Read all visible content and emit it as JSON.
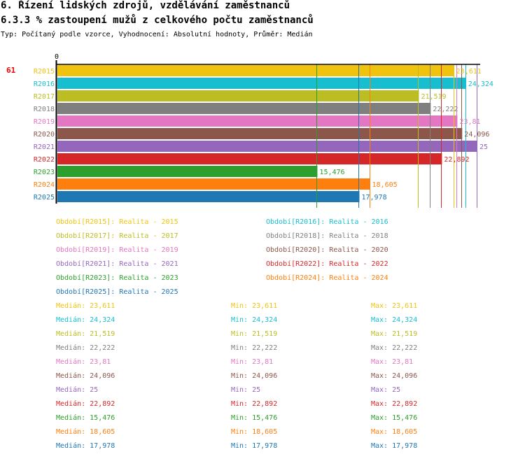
{
  "header": {
    "title": "6. Řízení lidských zdrojů, vzdělávání zaměstnanců",
    "subtitle": "6.3.3 % zastoupení mužů z celkového počtu zaměstnanců",
    "meta": "Typ: Počítaný podle vzorce, Vyhodnocení: Absolutní hodnoty, Průměr: Medián"
  },
  "rank_label": "61",
  "chart_data": {
    "type": "bar",
    "orientation": "horizontal",
    "title": "6.3.3 % zastoupení mužů z celkového počtu zaměstnanců",
    "xlabel": "",
    "ylabel": "",
    "x_tick_labels": [
      "0"
    ],
    "xlim": [
      0,
      25.2
    ],
    "grid": false,
    "categories": [
      "R2015",
      "R2016",
      "R2017",
      "R2018",
      "R2019",
      "R2020",
      "R2021",
      "R2022",
      "R2023",
      "R2024",
      "R2025"
    ],
    "values": [
      23.611,
      24.324,
      21.519,
      22.222,
      23.81,
      24.096,
      25,
      22.892,
      15.476,
      18.605,
      17.978
    ],
    "value_labels": [
      "23,611",
      "24,324",
      "21,519",
      "22,222",
      "23,81",
      "24,096",
      "25",
      "22,892",
      "15,476",
      "18,605",
      "17,978"
    ],
    "colors": [
      "#f0c30f",
      "#17becf",
      "#bcbd22",
      "#7f7f7f",
      "#e377c2",
      "#8c564b",
      "#9467bd",
      "#d62728",
      "#2ca02c",
      "#ff7f0e",
      "#1f77b4"
    ],
    "median_lines": [
      23.611,
      24.324,
      21.519,
      22.222,
      23.81,
      24.096,
      25,
      22.892,
      15.476,
      18.605,
      17.978
    ],
    "legend": [
      "Období[R2015]: Realita - 2015",
      "Období[R2016]: Realita - 2016",
      "Období[R2017]: Realita - 2017",
      "Období[R2018]: Realita - 2018",
      "Období[R2019]: Realita - 2019",
      "Období[R2020]: Realita - 2020",
      "Období[R2021]: Realita - 2021",
      "Období[R2022]: Realita - 2022",
      "Období[R2023]: Realita - 2023",
      "Období[R2024]: Realita - 2024",
      "Období[R2025]: Realita - 2025"
    ],
    "stats": [
      {
        "median": "Medián: 23,611",
        "min": "Min: 23,611",
        "max": "Max: 23,611"
      },
      {
        "median": "Medián: 24,324",
        "min": "Min: 24,324",
        "max": "Max: 24,324"
      },
      {
        "median": "Medián: 21,519",
        "min": "Min: 21,519",
        "max": "Max: 21,519"
      },
      {
        "median": "Medián: 22,222",
        "min": "Min: 22,222",
        "max": "Max: 22,222"
      },
      {
        "median": "Medián: 23,81",
        "min": "Min: 23,81",
        "max": "Max: 23,81"
      },
      {
        "median": "Medián: 24,096",
        "min": "Min: 24,096",
        "max": "Max: 24,096"
      },
      {
        "median": "Medián: 25",
        "min": "Min: 25",
        "max": "Max: 25"
      },
      {
        "median": "Medián: 22,892",
        "min": "Min: 22,892",
        "max": "Max: 22,892"
      },
      {
        "median": "Medián: 15,476",
        "min": "Min: 15,476",
        "max": "Max: 15,476"
      },
      {
        "median": "Medián: 18,605",
        "min": "Min: 18,605",
        "max": "Max: 18,605"
      },
      {
        "median": "Medián: 17,978",
        "min": "Min: 17,978",
        "max": "Max: 17,978"
      }
    ]
  }
}
